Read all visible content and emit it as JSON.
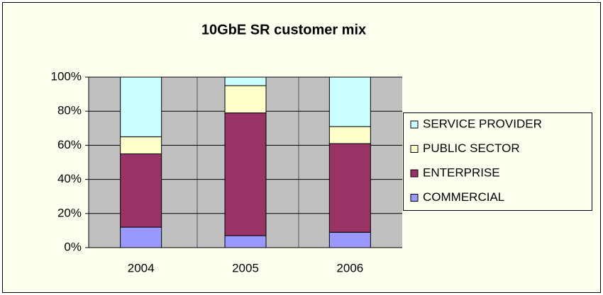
{
  "chart_data": {
    "type": "stacked_bar",
    "title": "10GbE SR customer mix",
    "categories": [
      "2004",
      "2005",
      "2006"
    ],
    "series": [
      {
        "name": "COMMERCIAL",
        "color": "#9999ff",
        "values": [
          12,
          7,
          9
        ]
      },
      {
        "name": "ENTERPRISE",
        "color": "#993366",
        "values": [
          43,
          72,
          52
        ]
      },
      {
        "name": "PUBLIC SECTOR",
        "color": "#ffffcc",
        "values": [
          10,
          16,
          10
        ]
      },
      {
        "name": "SERVICE PROVIDER",
        "color": "#ccffff",
        "values": [
          35,
          5,
          29
        ]
      }
    ],
    "ylim": [
      0,
      100
    ],
    "yticks": [
      {
        "value": 0,
        "label": "0%"
      },
      {
        "value": 20,
        "label": "20%"
      },
      {
        "value": 40,
        "label": "40%"
      },
      {
        "value": 60,
        "label": "60%"
      },
      {
        "value": 80,
        "label": "80%"
      },
      {
        "value": 100,
        "label": "100%"
      }
    ],
    "grid": true,
    "legend": "right"
  }
}
